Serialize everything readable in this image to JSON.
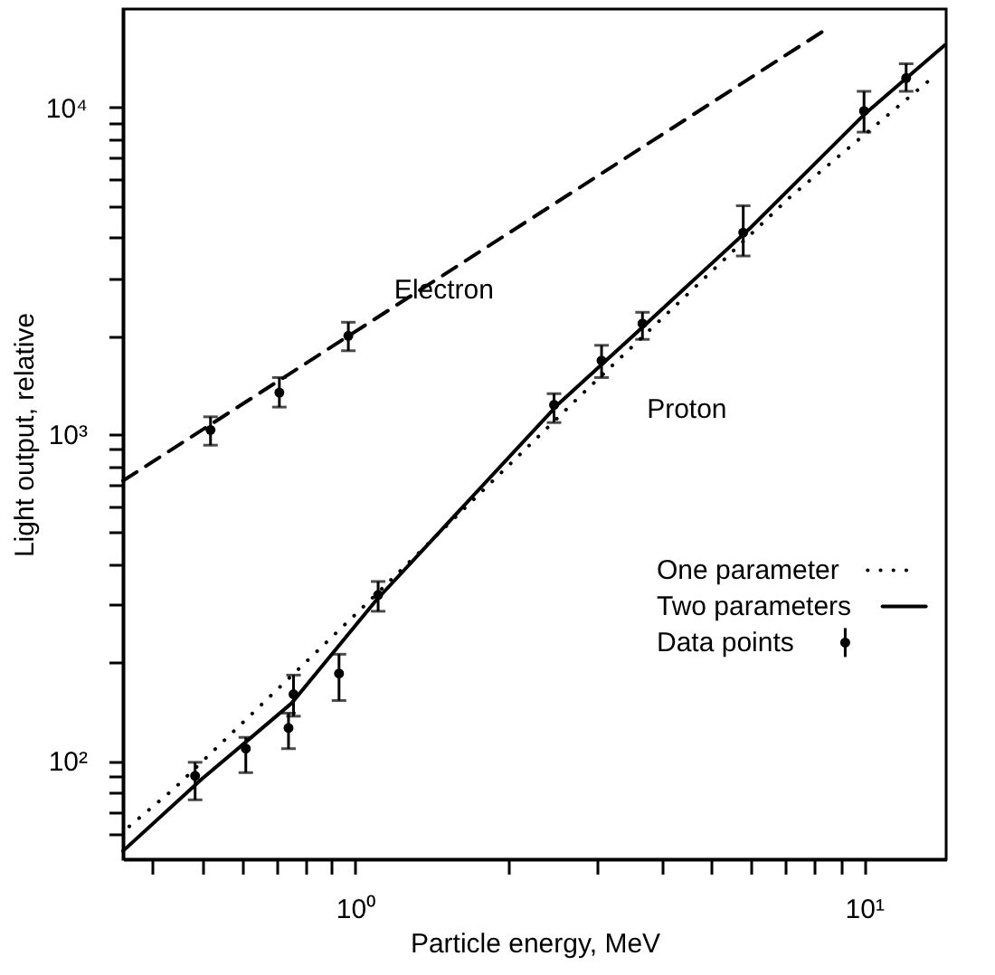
{
  "chart_data": {
    "type": "line",
    "xlabel": "Particle energy, MeV",
    "ylabel": "Light output, relative",
    "log": "xy",
    "grid": false,
    "legend": "right",
    "xlim": [
      0.35,
      14.5
    ],
    "ylim": [
      50,
      20000
    ],
    "xticks": [
      {
        "value": 0.4,
        "label": null
      },
      {
        "value": 0.5,
        "label": null
      },
      {
        "value": 0.6,
        "label": null
      },
      {
        "value": 0.7,
        "label": null
      },
      {
        "value": 0.8,
        "label": null
      },
      {
        "value": 0.9,
        "label": null
      },
      {
        "value": 1,
        "label": "10⁰"
      },
      {
        "value": 2,
        "label": null
      },
      {
        "value": 3,
        "label": null
      },
      {
        "value": 4,
        "label": null
      },
      {
        "value": 5,
        "label": null
      },
      {
        "value": 6,
        "label": null
      },
      {
        "value": 7,
        "label": null
      },
      {
        "value": 8,
        "label": null
      },
      {
        "value": 9,
        "label": null
      },
      {
        "value": 10,
        "label": "10¹"
      }
    ],
    "yticks": [
      {
        "value": 60,
        "label": null
      },
      {
        "value": 70,
        "label": null
      },
      {
        "value": 80,
        "label": null
      },
      {
        "value": 90,
        "label": null
      },
      {
        "value": 100,
        "label": "10²"
      },
      {
        "value": 200,
        "label": null
      },
      {
        "value": 300,
        "label": null
      },
      {
        "value": 400,
        "label": null
      },
      {
        "value": 500,
        "label": null
      },
      {
        "value": 600,
        "label": null
      },
      {
        "value": 700,
        "label": null
      },
      {
        "value": 800,
        "label": null
      },
      {
        "value": 900,
        "label": null
      },
      {
        "value": 1000,
        "label": "10³"
      },
      {
        "value": 2000,
        "label": null
      },
      {
        "value": 3000,
        "label": null
      },
      {
        "value": 4000,
        "label": null
      },
      {
        "value": 5000,
        "label": null
      },
      {
        "value": 6000,
        "label": null
      },
      {
        "value": 7000,
        "label": null
      },
      {
        "value": 8000,
        "label": null
      },
      {
        "value": 9000,
        "label": null
      },
      {
        "value": 10000,
        "label": "10⁴"
      }
    ],
    "annotations": [
      "Electron",
      "Proton"
    ],
    "series": [
      {
        "name": "One parameter",
        "line_style": "dotted",
        "color": "#000000",
        "x": [
          0.36,
          0.44,
          1.0,
          2.77,
          7.16,
          13.6
        ],
        "values": [
          63,
          82,
          280,
          1310,
          5320,
          12300
        ]
      },
      {
        "name": "Two parameters",
        "line_style": "solid",
        "color": "#000000",
        "x": [
          0.35,
          0.5,
          0.75,
          1.1,
          2.5,
          3.7,
          6,
          10,
          14.4
        ],
        "values": [
          53,
          88,
          150,
          310,
          1230,
          2150,
          4300,
          9500,
          15500
        ]
      },
      {
        "line_style": "dashed",
        "color": "#000000",
        "x": [
          0.35,
          8.5
        ],
        "values": [
          720,
          17500
        ]
      },
      {
        "name": "Data points",
        "type": "scatter",
        "marker": "circle",
        "color": "#000000",
        "x": [
          0.52,
          0.71,
          0.97,
          0.485,
          0.61,
          0.74,
          0.757,
          0.93,
          1.11,
          2.46,
          3.05,
          3.67,
          5.79,
          10.0,
          12.1
        ],
        "values": [
          1030,
          1340,
          2000,
          90,
          109,
          126,
          160,
          185,
          322,
          1230,
          1680,
          2180,
          4140,
          9750,
          12300
        ],
        "errors": [
          [
            925,
            1130
          ],
          [
            1210,
            1490
          ],
          [
            1800,
            2200
          ],
          [
            76,
            99
          ],
          [
            92,
            118
          ],
          [
            109,
            140
          ],
          [
            137,
            183
          ],
          [
            153,
            212
          ],
          [
            287,
            354
          ],
          [
            1085,
            1330
          ],
          [
            1490,
            1870
          ],
          [
            1950,
            2360
          ],
          [
            3510,
            5000
          ],
          [
            8400,
            11200
          ],
          [
            11200,
            13600
          ]
        ]
      }
    ]
  }
}
